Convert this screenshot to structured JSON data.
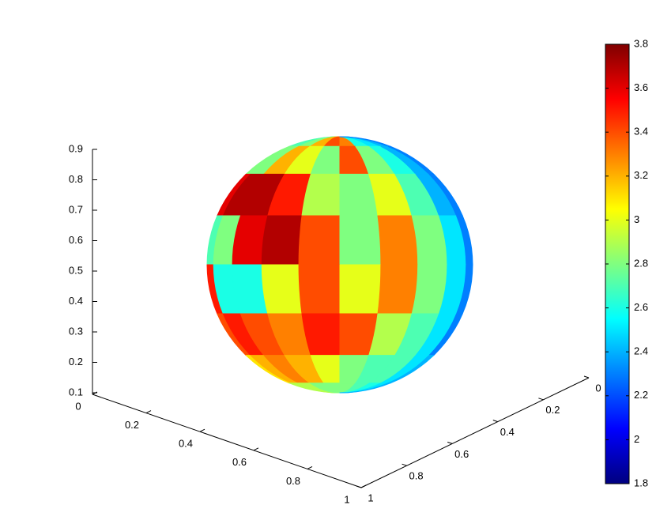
{
  "chart_data": {
    "type": "surface3d",
    "colormap": "jet",
    "clim": [
      1.8,
      3.8
    ],
    "cticks": [
      1.8,
      2,
      2.2,
      2.4,
      2.6,
      2.8,
      3,
      3.2,
      3.4,
      3.6,
      3.8
    ],
    "xlim": [
      0,
      1
    ],
    "xticks": [
      0,
      0.2,
      0.4,
      0.6,
      0.8,
      1
    ],
    "ylim": [
      0,
      1
    ],
    "yticks": [
      0,
      0.2,
      0.4,
      0.6,
      0.8,
      1
    ],
    "zlim": [
      0.1,
      0.9
    ],
    "zticks": [
      0.1,
      0.2,
      0.3,
      0.4,
      0.5,
      0.6,
      0.7,
      0.8,
      0.9
    ],
    "values": [
      [
        2.7,
        2.7,
        2.8,
        3.2,
        3.4,
        3.3,
        2.6,
        2.5,
        2.4,
        2.3
      ],
      [
        2.8,
        2.8,
        3.2,
        3.0,
        2.8,
        3.4,
        2.8,
        2.6,
        2.4,
        2.3
      ],
      [
        3.6,
        3.7,
        3.7,
        3.5,
        2.9,
        2.8,
        3.0,
        2.7,
        2.4,
        2.3
      ],
      [
        2.7,
        2.8,
        3.6,
        3.7,
        3.4,
        2.8,
        3.3,
        2.8,
        2.5,
        2.3
      ],
      [
        3.5,
        2.6,
        2.6,
        3.0,
        3.4,
        3.0,
        3.3,
        2.8,
        2.5,
        2.3
      ],
      [
        3.4,
        3.5,
        3.4,
        3.3,
        3.5,
        3.4,
        2.9,
        2.7,
        2.5,
        2.3
      ],
      [
        3.1,
        3.2,
        3.3,
        3.2,
        3.0,
        2.8,
        2.7,
        2.7,
        2.5,
        2.4
      ],
      [
        2.9,
        2.9,
        2.9,
        2.8,
        2.8,
        2.8,
        2.7,
        2.6,
        2.5,
        2.4
      ]
    ]
  }
}
